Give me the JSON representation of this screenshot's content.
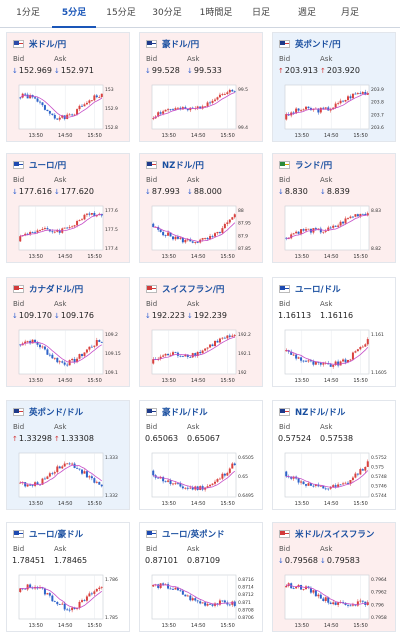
{
  "tabs": [
    "1分足",
    "5分足",
    "15分足",
    "30分足",
    "1時間足",
    "日足",
    "週足",
    "月足"
  ],
  "active_tab": 1,
  "labels": {
    "bid": "Bid",
    "ask": "Ask"
  },
  "colors": {
    "accent": "#1a56b8",
    "bullish": "#d9413e",
    "bearish": "#2e63c9",
    "ma": "#c64fc8",
    "down_bg": "#fdeeee",
    "up_bg": "#eaf2fb"
  },
  "cards": [
    {
      "pair": "米ドル/円",
      "flag": "us",
      "dir": "down",
      "bid": "152.969",
      "ask": "152.971",
      "x_ticks": [
        "13:50",
        "14:50",
        "15:50"
      ],
      "y_ticks": [
        "153",
        "152.9",
        "152.8"
      ],
      "seed": 1,
      "trend": "wave"
    },
    {
      "pair": "豪ドル/円",
      "flag": "au",
      "dir": "down",
      "bid": "99.528",
      "ask": "99.533",
      "x_ticks": [
        "13:50",
        "14:50",
        "15:50"
      ],
      "y_ticks": [
        "99.5",
        "99.4"
      ],
      "seed": 2,
      "trend": "up"
    },
    {
      "pair": "英ポンド/円",
      "flag": "gb",
      "dir": "up",
      "bid": "203.913",
      "ask": "203.920",
      "x_ticks": [
        "13:50",
        "14:50",
        "15:50"
      ],
      "y_ticks": [
        "203.9",
        "203.8",
        "203.7",
        "203.6"
      ],
      "seed": 3,
      "trend": "up"
    },
    {
      "pair": "ユーロ/円",
      "flag": "eu",
      "dir": "down",
      "bid": "177.616",
      "ask": "177.620",
      "x_ticks": [
        "13:50",
        "14:50",
        "15:50"
      ],
      "y_ticks": [
        "177.6",
        "177.5",
        "177.4"
      ],
      "seed": 4,
      "trend": "up"
    },
    {
      "pair": "NZドル/円",
      "flag": "nz",
      "dir": "down",
      "bid": "87.993",
      "ask": "88.000",
      "x_ticks": [
        "13:50",
        "14:50",
        "15:50"
      ],
      "y_ticks": [
        "88",
        "87.95",
        "87.9",
        "87.85"
      ],
      "seed": 5,
      "trend": "vdip"
    },
    {
      "pair": "ランド/円",
      "flag": "za",
      "dir": "down",
      "bid": "8.830",
      "ask": "8.839",
      "x_ticks": [
        "13:50",
        "14:50",
        "15:50"
      ],
      "y_ticks": [
        "8.83",
        "8.82"
      ],
      "seed": 6,
      "trend": "up"
    },
    {
      "pair": "カナダドル/円",
      "flag": "ca",
      "dir": "down",
      "bid": "109.170",
      "ask": "109.176",
      "x_ticks": [
        "13:50",
        "14:50",
        "15:50"
      ],
      "y_ticks": [
        "109.2",
        "109.15",
        "109.1"
      ],
      "seed": 7,
      "trend": "wave"
    },
    {
      "pair": "スイスフラン/円",
      "flag": "ch",
      "dir": "down",
      "bid": "192.223",
      "ask": "192.239",
      "x_ticks": [
        "13:50",
        "14:50",
        "15:50"
      ],
      "y_ticks": [
        "192.2",
        "192.1",
        "192"
      ],
      "seed": 8,
      "trend": "up"
    },
    {
      "pair": "ユーロ/ドル",
      "flag": "eu",
      "dir": "none",
      "bid": "1.16113",
      "ask": "1.16116",
      "x_ticks": [
        "13:50",
        "14:50",
        "15:50"
      ],
      "y_ticks": [
        "1.161",
        "1.1605"
      ],
      "seed": 9,
      "trend": "vdip"
    },
    {
      "pair": "英ポンド/ドル",
      "flag": "gb",
      "dir": "up",
      "bid": "1.33298",
      "ask": "1.33308",
      "x_ticks": [
        "13:50",
        "14:50",
        "15:50"
      ],
      "y_ticks": [
        "1.333",
        "1.332"
      ],
      "seed": 10,
      "trend": "wave"
    },
    {
      "pair": "豪ドル/ドル",
      "flag": "au",
      "dir": "none",
      "bid": "0.65063",
      "ask": "0.65067",
      "x_ticks": [
        "13:50",
        "14:50",
        "15:50"
      ],
      "y_ticks": [
        "0.6505",
        "0.65",
        "0.6495"
      ],
      "seed": 11,
      "trend": "vdip"
    },
    {
      "pair": "NZドル/ドル",
      "flag": "nz",
      "dir": "none",
      "bid": "0.57524",
      "ask": "0.57538",
      "x_ticks": [
        "13:50",
        "14:50",
        "15:50"
      ],
      "y_ticks": [
        "0.5752",
        "0.575",
        "0.5748",
        "0.5746",
        "0.5744"
      ],
      "seed": 12,
      "trend": "vdip"
    },
    {
      "pair": "ユーロ/豪ドル",
      "flag": "eu",
      "dir": "none",
      "bid": "1.78451",
      "ask": "1.78465",
      "x_ticks": [
        "13:50",
        "14:50",
        "15:50"
      ],
      "y_ticks": [
        "1.786",
        "1.785"
      ],
      "seed": 13,
      "trend": "wave"
    },
    {
      "pair": "ユーロ/英ポンド",
      "flag": "eu",
      "dir": "none",
      "bid": "0.87101",
      "ask": "0.87109",
      "x_ticks": [
        "13:50",
        "14:50",
        "15:50"
      ],
      "y_ticks": [
        "0.8716",
        "0.8714",
        "0.8712",
        "0.871",
        "0.8708",
        "0.8706"
      ],
      "seed": 14,
      "trend": "down"
    },
    {
      "pair": "米ドル/スイスフラン",
      "flag": "ch",
      "dir": "down",
      "bid": "0.79568",
      "ask": "0.79583",
      "x_ticks": [
        "13:50",
        "14:50",
        "15:50"
      ],
      "y_ticks": [
        "0.7964",
        "0.7962",
        "0.796",
        "0.7958"
      ],
      "seed": 15,
      "trend": "down"
    }
  ]
}
